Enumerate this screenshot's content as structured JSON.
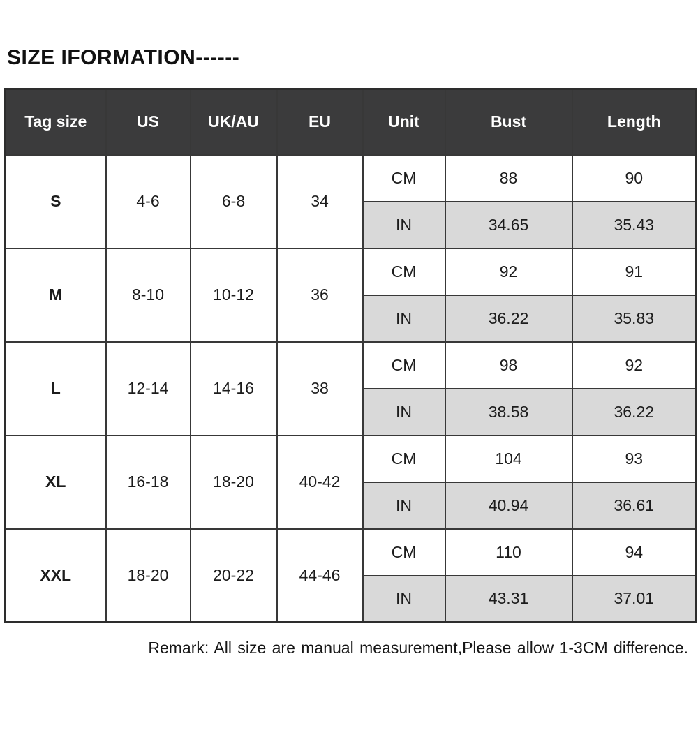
{
  "page": {
    "title": "SIZE IFORMATION------",
    "remark": "Remark: All size are manual measurement,Please allow 1-3CM difference."
  },
  "colors": {
    "header_bg": "#3b3b3c",
    "header_text": "#ffffff",
    "in_row_bg": "#d9d9d9",
    "border": "#383838",
    "background": "#ffffff"
  },
  "chart_data": {
    "type": "table",
    "title": "SIZE IFORMATION------",
    "columns": [
      "Tag size",
      "US",
      "UK/AU",
      "EU",
      "Unit",
      "Bust",
      "Length"
    ],
    "unit_labels": {
      "cm": "CM",
      "in": "IN"
    },
    "groups": [
      {
        "tag": "S",
        "us": "4-6",
        "uk_au": "6-8",
        "eu": "34",
        "cm": {
          "bust": "88",
          "length": "90"
        },
        "in": {
          "bust": "34.65",
          "length": "35.43"
        }
      },
      {
        "tag": "M",
        "us": "8-10",
        "uk_au": "10-12",
        "eu": "36",
        "cm": {
          "bust": "92",
          "length": "91"
        },
        "in": {
          "bust": "36.22",
          "length": "35.83"
        }
      },
      {
        "tag": "L",
        "us": "12-14",
        "uk_au": "14-16",
        "eu": "38",
        "cm": {
          "bust": "98",
          "length": "92"
        },
        "in": {
          "bust": "38.58",
          "length": "36.22"
        }
      },
      {
        "tag": "XL",
        "us": "16-18",
        "uk_au": "18-20",
        "eu": "40-42",
        "cm": {
          "bust": "104",
          "length": "93"
        },
        "in": {
          "bust": "40.94",
          "length": "36.61"
        }
      },
      {
        "tag": "XXL",
        "us": "18-20",
        "uk_au": "20-22",
        "eu": "44-46",
        "cm": {
          "bust": "110",
          "length": "94"
        },
        "in": {
          "bust": "43.31",
          "length": "37.01"
        }
      }
    ],
    "footnote": "Remark: All size are manual measurement,Please allow 1-3CM difference."
  }
}
